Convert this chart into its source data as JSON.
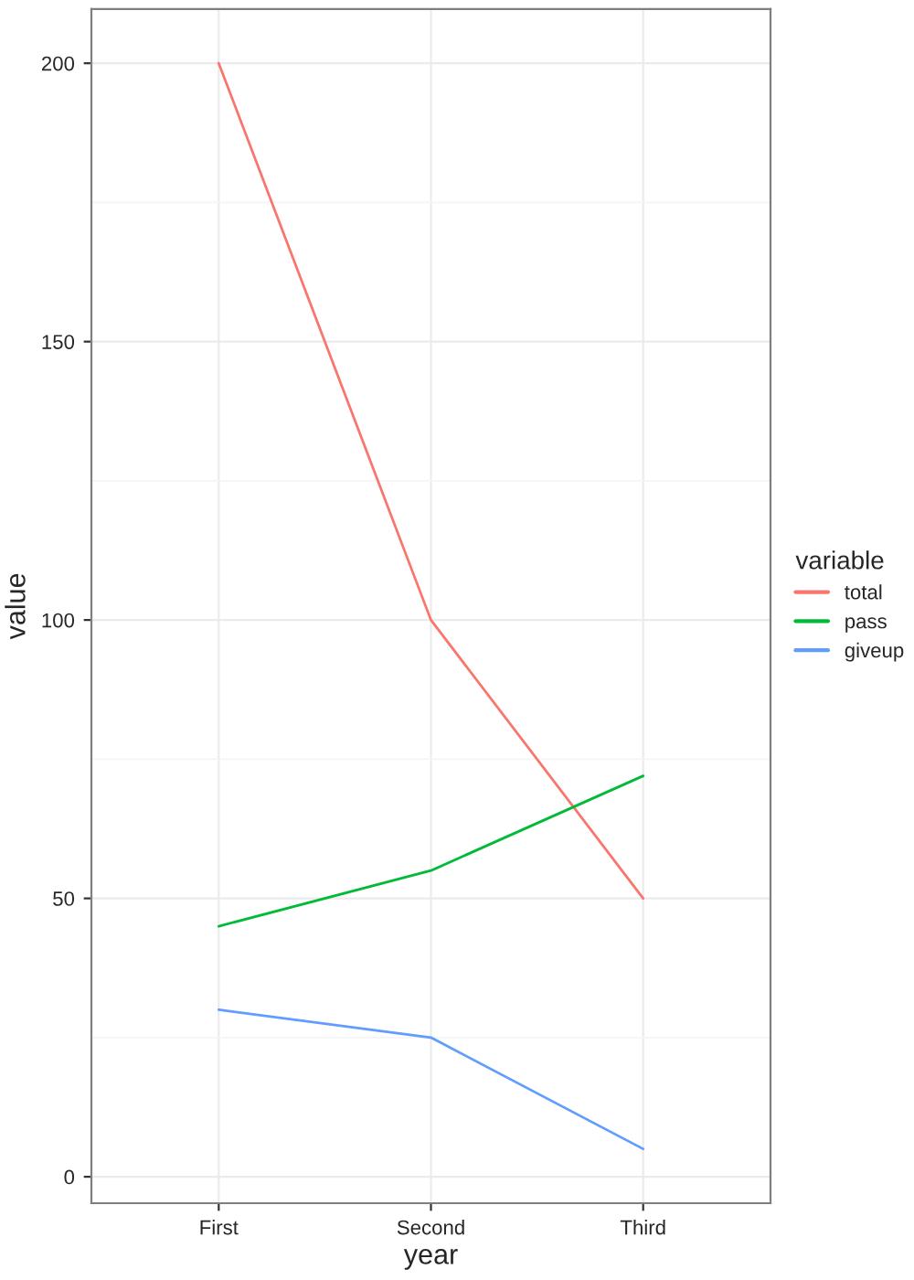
{
  "chart_data": {
    "type": "line",
    "xlabel": "year",
    "ylabel": "value",
    "legend_title": "variable",
    "categories": [
      "First",
      "Second",
      "Third"
    ],
    "series": [
      {
        "name": "total",
        "color": "#f8766d",
        "values": [
          200,
          100,
          50
        ]
      },
      {
        "name": "pass",
        "color": "#00ba38",
        "values": [
          45,
          55,
          72
        ]
      },
      {
        "name": "giveup",
        "color": "#619cff",
        "values": [
          30,
          25,
          5
        ]
      }
    ],
    "ylim": [
      -4.75,
      209.75
    ],
    "yticks": [
      0,
      50,
      100,
      150,
      200
    ],
    "grid": true,
    "legend": "right",
    "marker": "none",
    "line_style": "solid"
  }
}
